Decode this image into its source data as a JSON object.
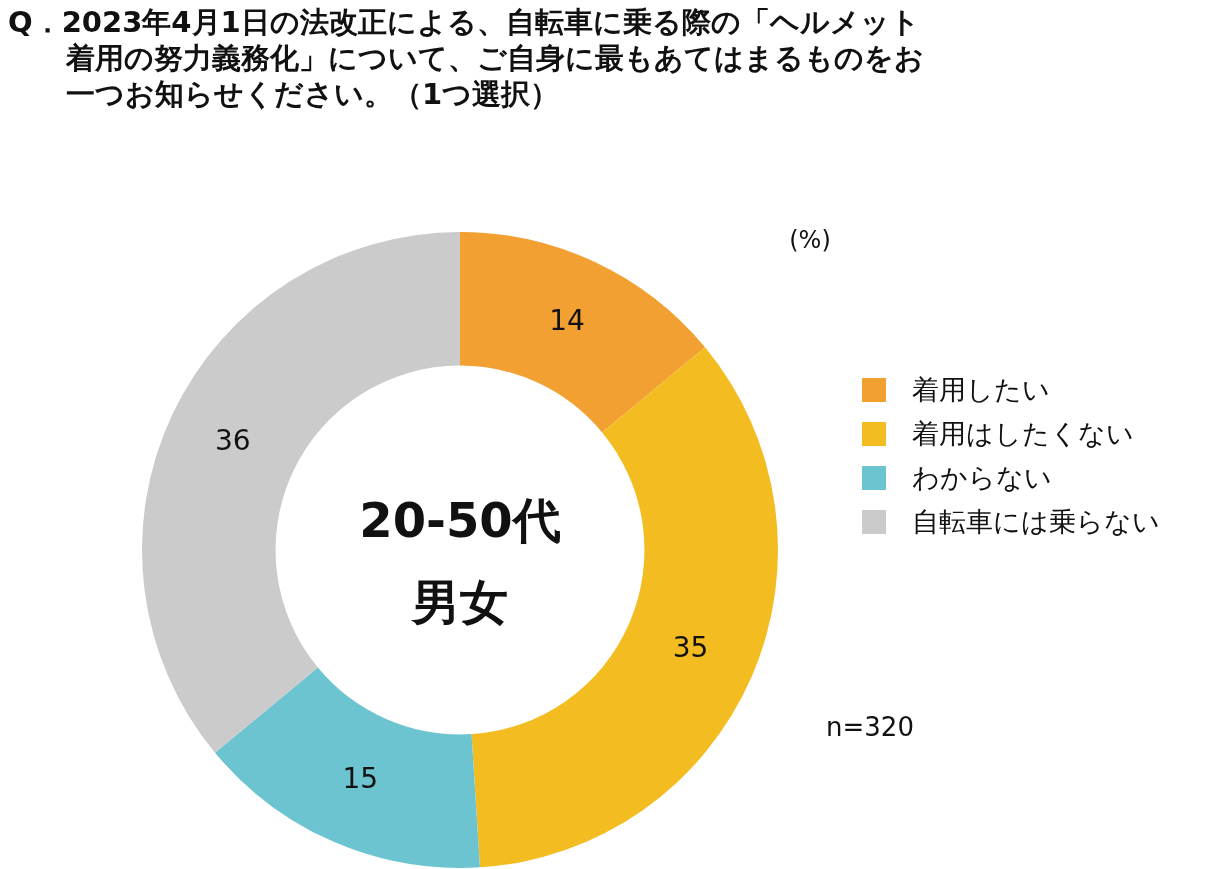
{
  "chart_data": {
    "type": "donut",
    "title": "Q．2023年4月1日の法改正による、自転車に乗る際の「ヘルメット着用の努力義務化」について、ご自身に最もあてはまるものをお一つお知らせください。（1つ選択）",
    "categories": [
      "着用したい",
      "着用はしたくない",
      "わからない",
      "自転車には乗らない"
    ],
    "values": [
      14,
      35,
      15,
      36
    ],
    "colors": [
      "#f3a033",
      "#f3bd22",
      "#6cc4d0",
      "#cbcbcb"
    ],
    "data_labels": true,
    "legend": "right",
    "annotations": [
      "20-50代",
      "男女",
      "(%)",
      "n=320"
    ]
  }
}
